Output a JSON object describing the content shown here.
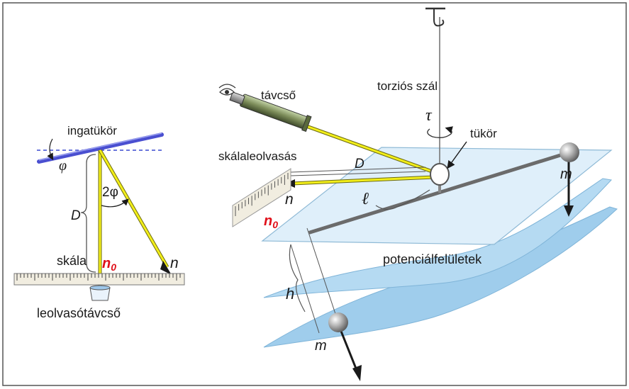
{
  "left_panel": {
    "ingatukor": "ingatükör",
    "phi": "φ",
    "two_phi": "2φ",
    "D": "D",
    "skala": "skála",
    "n0_main": "n",
    "n0_sub": "0",
    "n": "n",
    "leolvaso": "leolvasótávcső"
  },
  "right_panel": {
    "tavcso": "távcső",
    "torzios_szal": "torziós szál",
    "tau": "τ",
    "tukor": "tükör",
    "skalaleolvasas": "skálaleolvasás",
    "D": "D",
    "n": "n",
    "n0_main": "n",
    "n0_sub": "0",
    "ell": "ℓ",
    "m_top": "m",
    "potencialfeluletek": "potenciálfelületek",
    "h": "h",
    "m_bottom": "m"
  },
  "colors": {
    "ray": "#f2ee1a",
    "ray_outline": "#6b6a10",
    "mirror": "#4a4fd0",
    "plane": "#cfe6f5",
    "plane_edge": "#8fbad6",
    "rod": "#6b6b6b",
    "highlight": "#e0101a",
    "scale": "#f1ede0"
  }
}
